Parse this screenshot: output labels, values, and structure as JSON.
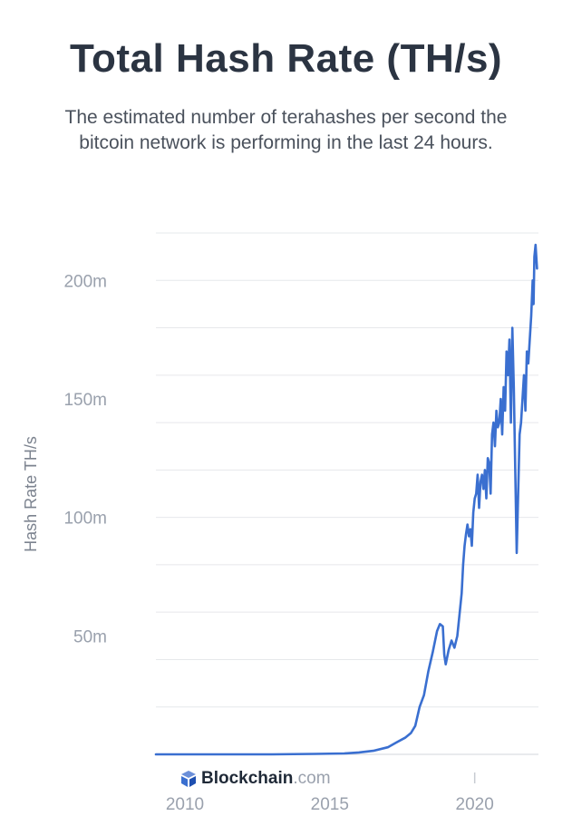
{
  "header": {
    "title": "Total Hash Rate (TH/s)",
    "subtitle": "The estimated number of terahashes per second the bitcoin network is performing in the last 24 hours."
  },
  "brand": {
    "name": "Blockchain",
    "tld": ".com",
    "icon": "blockchain-logo-icon"
  },
  "colors": {
    "line": "#3a6fd0",
    "grid": "#e6e8eb",
    "axis": "#d3d6db",
    "tick_text": "#9aa1ad"
  },
  "chart_data": {
    "type": "line",
    "title": "Total Hash Rate (TH/s)",
    "xlabel": "",
    "ylabel": "Hash Rate TH/s",
    "xlim": [
      2009.0,
      2022.2
    ],
    "ylim": [
      0,
      220000000
    ],
    "grid": true,
    "x_ticks": [
      2010,
      2015,
      2020
    ],
    "x_tick_labels": [
      "2010",
      "2015",
      "2020"
    ],
    "y_ticks": [
      50000000,
      100000000,
      150000000,
      200000000
    ],
    "y_tick_labels": [
      "50m",
      "100m",
      "150m",
      "200m"
    ],
    "series": [
      {
        "name": "Hash Rate TH/s",
        "x": [
          2009.0,
          2011.0,
          2013.0,
          2014.5,
          2015.5,
          2016.0,
          2016.5,
          2017.0,
          2017.3,
          2017.6,
          2017.8,
          2017.95,
          2018.1,
          2018.25,
          2018.4,
          2018.55,
          2018.7,
          2018.8,
          2018.9,
          2018.95,
          2019.0,
          2019.1,
          2019.2,
          2019.3,
          2019.4,
          2019.5,
          2019.55,
          2019.6,
          2019.65,
          2019.7,
          2019.75,
          2019.8,
          2019.85,
          2019.9,
          2019.95,
          2020.0,
          2020.05,
          2020.1,
          2020.15,
          2020.2,
          2020.25,
          2020.3,
          2020.35,
          2020.4,
          2020.45,
          2020.5,
          2020.55,
          2020.6,
          2020.65,
          2020.7,
          2020.75,
          2020.8,
          2020.85,
          2020.9,
          2020.95,
          2021.0,
          2021.05,
          2021.1,
          2021.15,
          2021.2,
          2021.25,
          2021.3,
          2021.35,
          2021.4,
          2021.45,
          2021.5,
          2021.55,
          2021.6,
          2021.65,
          2021.7,
          2021.75,
          2021.8,
          2021.85,
          2021.9,
          2021.95,
          2022.0,
          2022.03,
          2022.06,
          2022.1,
          2022.15
        ],
        "values": [
          0,
          0,
          0,
          200000,
          400000,
          800000,
          1500000,
          3000000,
          5000000,
          7000000,
          9000000,
          12000000,
          20000000,
          25000000,
          35000000,
          43000000,
          52000000,
          55000000,
          54000000,
          42000000,
          38000000,
          44000000,
          48000000,
          45000000,
          50000000,
          62000000,
          68000000,
          80000000,
          88000000,
          93000000,
          97000000,
          92000000,
          95000000,
          88000000,
          102000000,
          108000000,
          110000000,
          118000000,
          104000000,
          115000000,
          118000000,
          112000000,
          120000000,
          108000000,
          125000000,
          123000000,
          110000000,
          135000000,
          140000000,
          130000000,
          145000000,
          138000000,
          140000000,
          150000000,
          135000000,
          155000000,
          145000000,
          170000000,
          160000000,
          175000000,
          140000000,
          180000000,
          155000000,
          120000000,
          85000000,
          110000000,
          135000000,
          140000000,
          150000000,
          160000000,
          145000000,
          170000000,
          165000000,
          175000000,
          185000000,
          200000000,
          190000000,
          210000000,
          215000000,
          205000000
        ]
      }
    ]
  }
}
